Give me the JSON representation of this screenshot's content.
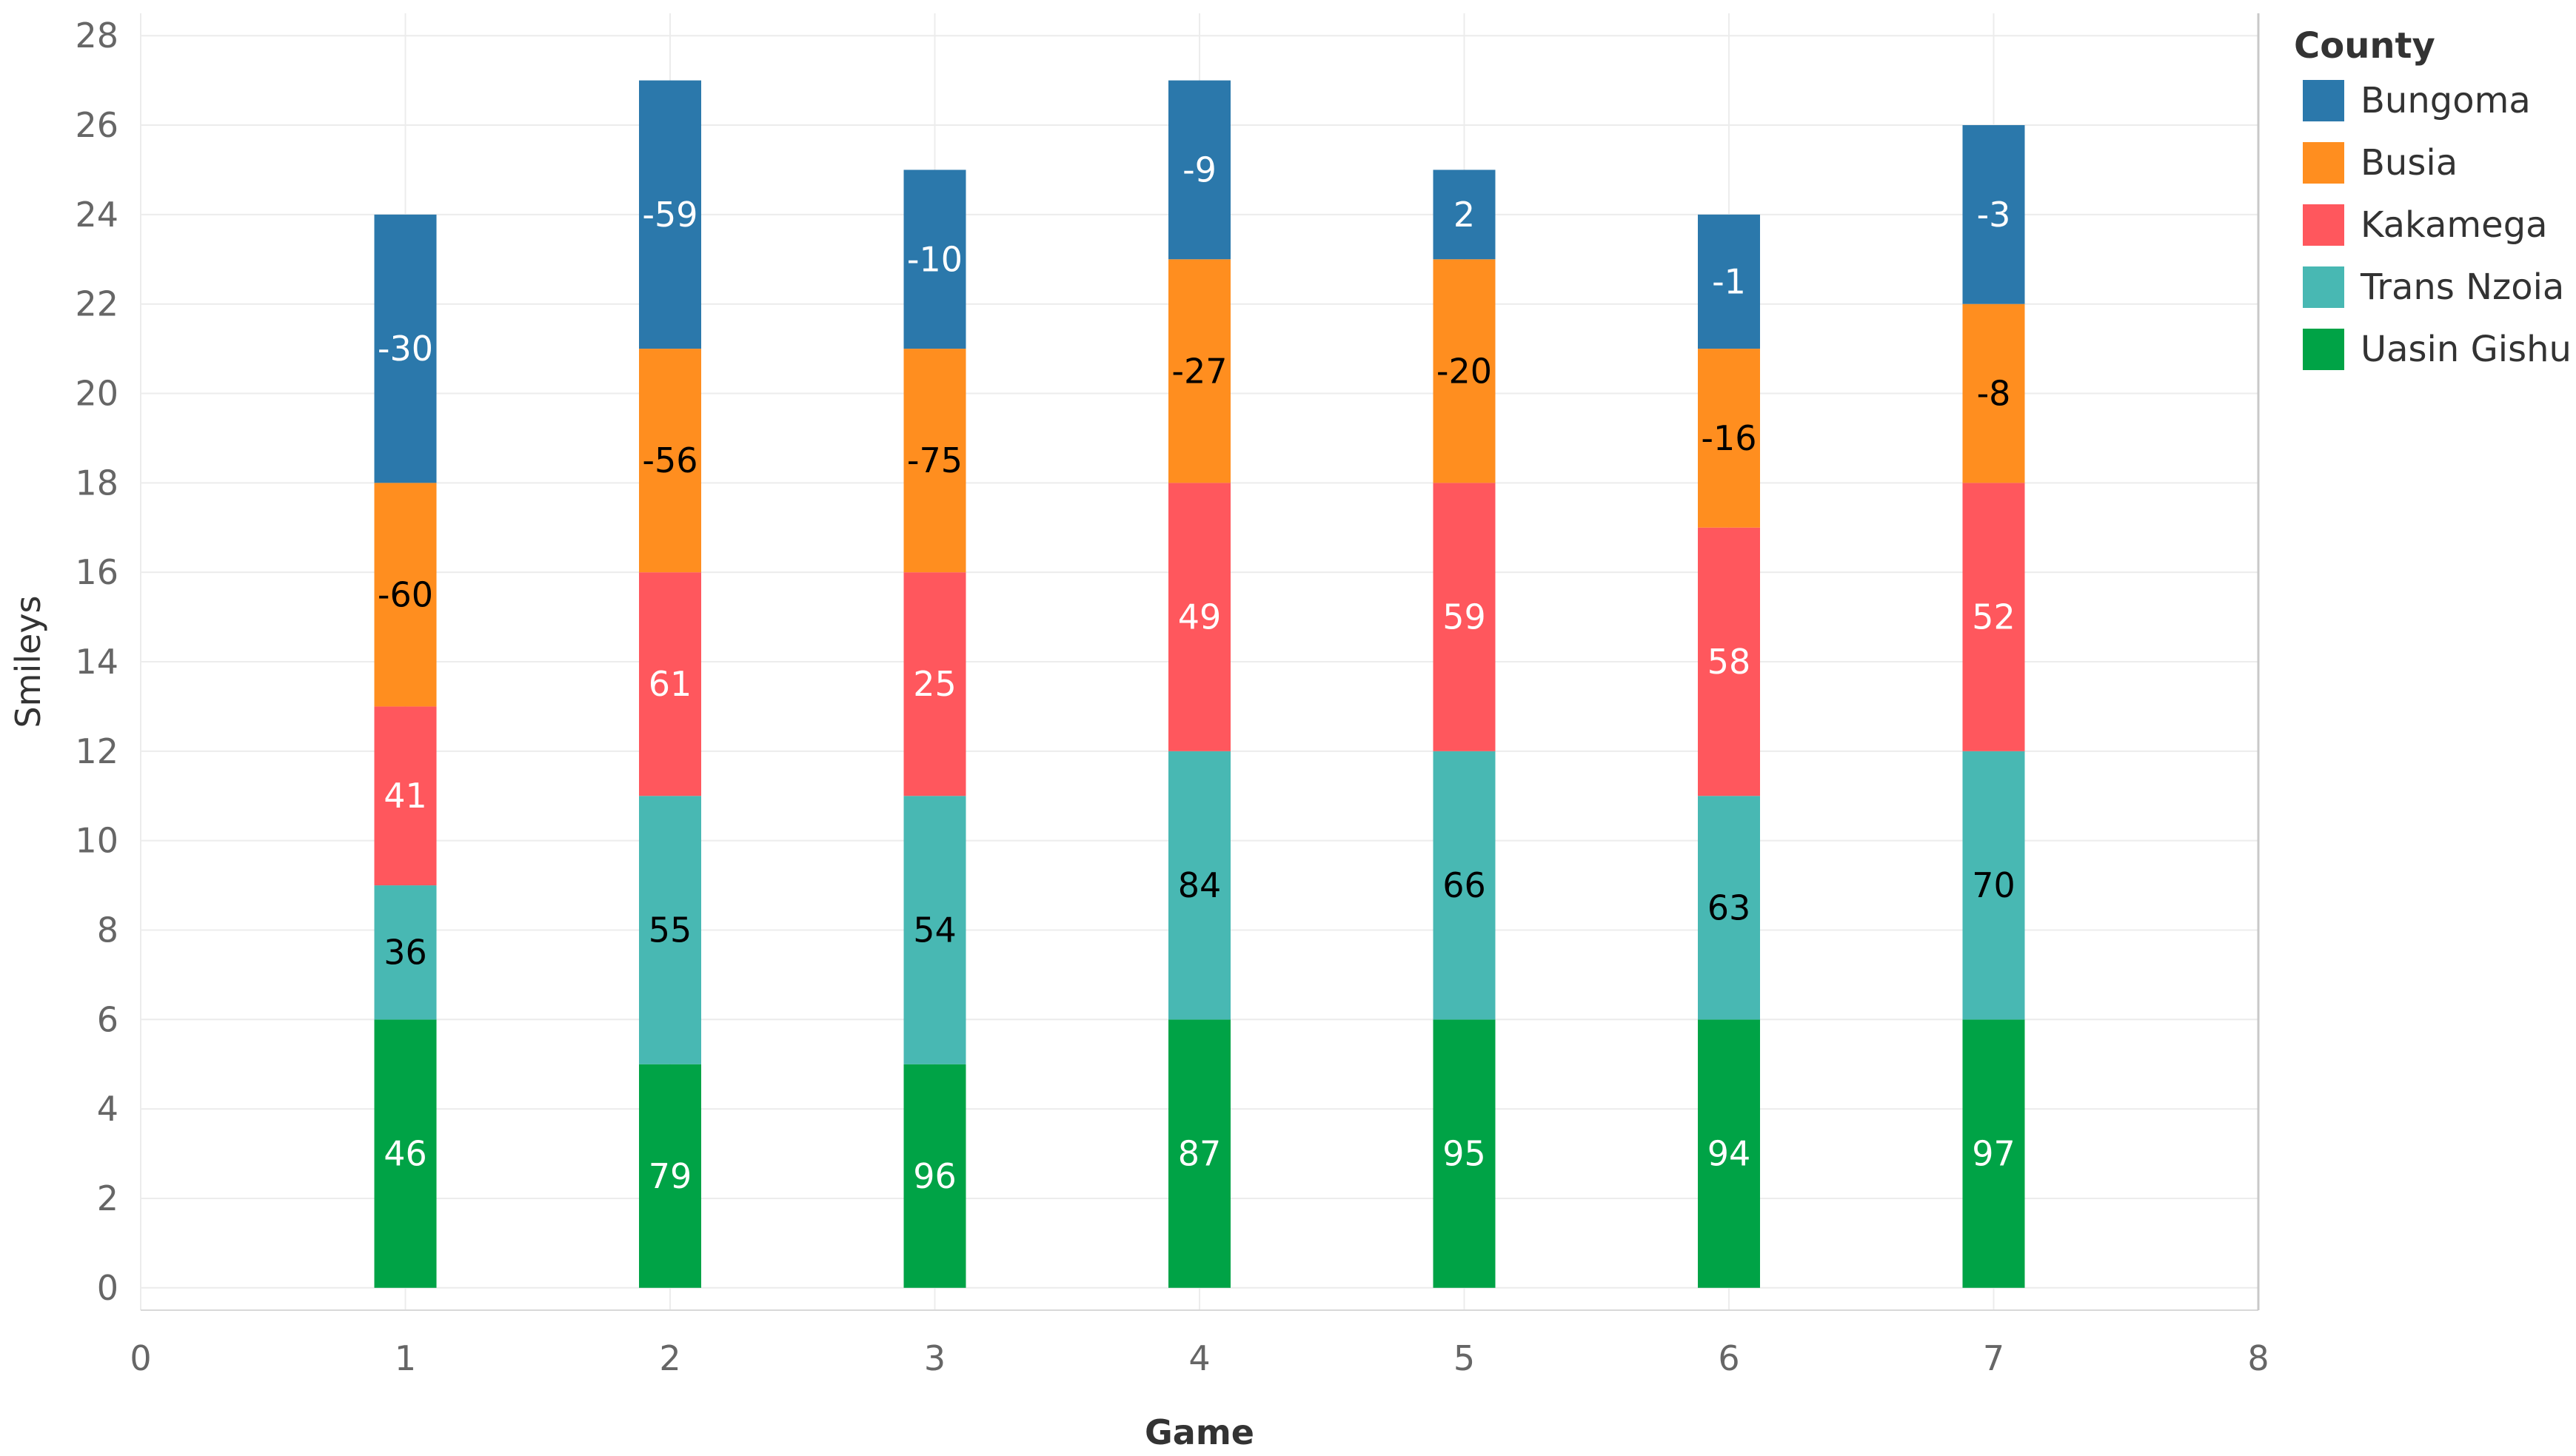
{
  "chart_data": {
    "type": "bar",
    "stacked": true,
    "title": "",
    "xlabel": "Game",
    "ylabel": "Smileys",
    "xlim": [
      0,
      8
    ],
    "ylim": [
      -0.5,
      28.5
    ],
    "xticks": [
      "0",
      "1",
      "2",
      "3",
      "4",
      "5",
      "6",
      "7",
      "8"
    ],
    "yticks": [
      "0",
      "2",
      "4",
      "6",
      "8",
      "10",
      "12",
      "14",
      "16",
      "18",
      "20",
      "22",
      "24",
      "26",
      "28"
    ],
    "grid": true,
    "legend": {
      "title": "County",
      "position": "right"
    },
    "categories": [
      "1",
      "2",
      "3",
      "4",
      "5",
      "6",
      "7"
    ],
    "series": [
      {
        "name": "Uasin Gishu",
        "color": "#00A346",
        "label_color": "#ffffff",
        "values": [
          6,
          5,
          5,
          6,
          6,
          6,
          6
        ],
        "labels": [
          "46",
          "79",
          "96",
          "87",
          "95",
          "94",
          "97"
        ]
      },
      {
        "name": "Trans Nzoia",
        "color": "#48B8B3",
        "label_color": "#000000",
        "values": [
          3,
          6,
          6,
          6,
          6,
          5,
          6
        ],
        "labels": [
          "36",
          "55",
          "54",
          "84",
          "66",
          "63",
          "70"
        ]
      },
      {
        "name": "Kakamega",
        "color": "#FF575D",
        "label_color": "#ffffff",
        "values": [
          4,
          5,
          5,
          6,
          6,
          6,
          6
        ],
        "labels": [
          "41",
          "61",
          "25",
          "49",
          "59",
          "58",
          "52"
        ]
      },
      {
        "name": "Busia",
        "color": "#FF8E1F",
        "label_color": "#000000",
        "values": [
          5,
          5,
          5,
          5,
          5,
          4,
          4
        ],
        "labels": [
          "-60",
          "-56",
          "-75",
          "-27",
          "-20",
          "-16",
          "-8"
        ]
      },
      {
        "name": "Bungoma",
        "color": "#2B78AB",
        "label_color": "#ffffff",
        "values": [
          6,
          6,
          4,
          4,
          2,
          3,
          4
        ],
        "labels": [
          "-30",
          "-59",
          "-10",
          "-9",
          "2",
          "-1",
          "-3"
        ]
      }
    ],
    "legend_order": [
      "Bungoma",
      "Busia",
      "Kakamega",
      "Trans Nzoia",
      "Uasin Gishu"
    ]
  }
}
